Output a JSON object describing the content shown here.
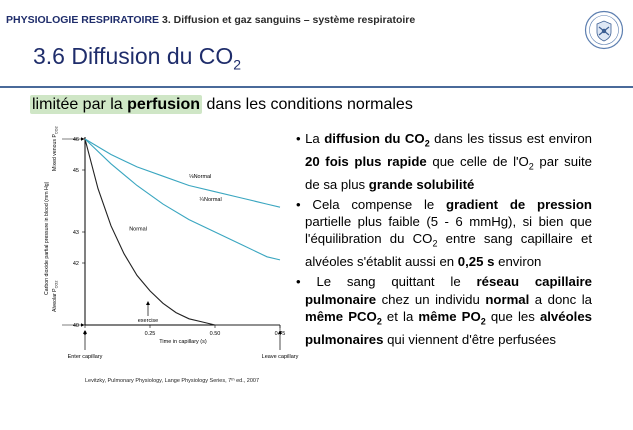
{
  "header": {
    "course": "PHYSIOLOGIE RESPIRATOIRE",
    "chapter": "3. Diffusion et gaz sanguins – système respiratoire"
  },
  "title": {
    "main": "3.6 Diffusion du CO",
    "sub": "2"
  },
  "subtitle": {
    "part1": "limitée par la ",
    "bold": "perfusion",
    "part2": " dans les conditions normales"
  },
  "chart_data": {
    "type": "line",
    "ylabel": "Carbon dioxide partial pressure in blood (mm Hg)",
    "ylabel_top": "Mixed venous P",
    "ylabel_top_sub": "CO2",
    "ylabel_bottom": "Alveolar P",
    "ylabel_bottom_sub": "CO2",
    "xlabel": "Time in capillary (s)",
    "xlim": [
      0,
      0.75
    ],
    "ylim": [
      40,
      46
    ],
    "yticks": [
      "40",
      "42",
      "43",
      "45",
      "46"
    ],
    "xticks": [
      "0",
      "0.25",
      "0.50",
      "0.75"
    ],
    "x_bottom_labels": {
      "left": "Enter capillary",
      "right": "Leave capillary"
    },
    "annotation": "exercise",
    "series": [
      {
        "name": "Normal",
        "x": [
          0,
          0.05,
          0.1,
          0.15,
          0.2,
          0.25,
          0.3,
          0.35,
          0.4,
          0.45,
          0.5,
          0.55,
          0.6,
          0.65,
          0.7,
          0.75
        ],
        "y": [
          46,
          44.4,
          43.2,
          42.3,
          41.6,
          41.1,
          40.7,
          40.4,
          40.2,
          40.1,
          40.0,
          40.0,
          40.0,
          40.0,
          40.0,
          40.0
        ]
      },
      {
        "name": "¼Normal",
        "x": [
          0,
          0.1,
          0.2,
          0.3,
          0.4,
          0.5,
          0.6,
          0.7,
          0.75
        ],
        "y": [
          46,
          45.2,
          44.5,
          43.9,
          43.4,
          43.0,
          42.6,
          42.2,
          42.1
        ]
      },
      {
        "name": "⅛Normal",
        "x": [
          0,
          0.1,
          0.2,
          0.3,
          0.4,
          0.5,
          0.6,
          0.7,
          0.75
        ],
        "y": [
          46,
          45.5,
          45.1,
          44.8,
          44.5,
          44.3,
          44.1,
          43.9,
          43.8
        ]
      }
    ],
    "colors": {
      "normal": "#222222",
      "reduced": "#3aa6c0"
    }
  },
  "citation": "Levitzky, Pulmonary Physiology, Lange Physiology Series, 7ᵗʰ ed., 2007",
  "bullets": {
    "b1": {
      "pre": "La ",
      "b_diff": "diffusion du CO",
      "sub2": "2",
      "mid": " dans les tissus est environ ",
      "b_fold": "20 fois plus rapide",
      "mid2": " que celle de l'O",
      "sub2b": "2",
      "mid3": " par suite de sa plus ",
      "b_sol": "grande solubilité"
    },
    "b2": {
      "pre": "Cela compense le ",
      "b_grad": "gradient de pression",
      "mid": " partielle plus faible (5 - 6 mmHg), si bien que l'équilibration du CO",
      "sub2": "2",
      "mid2": " entre sang capillaire et alvéoles s'établit aussi en ",
      "b_time": "0,25 s",
      "post": " environ"
    },
    "b3": {
      "pre": "Le sang quittant le ",
      "b_res": "réseau capillaire pulmonaire",
      "mid": " chez un individu ",
      "b_norm": "normal",
      "mid2": " a donc la ",
      "b_pco2": "même PCO",
      "sub2": "2",
      "mid3": " et la ",
      "b_po2": "même PO",
      "sub2b": "2",
      "mid4": " que les ",
      "b_alv": "alvéoles pulmonaires",
      "post": " qui viennent d'être perfusées"
    }
  }
}
